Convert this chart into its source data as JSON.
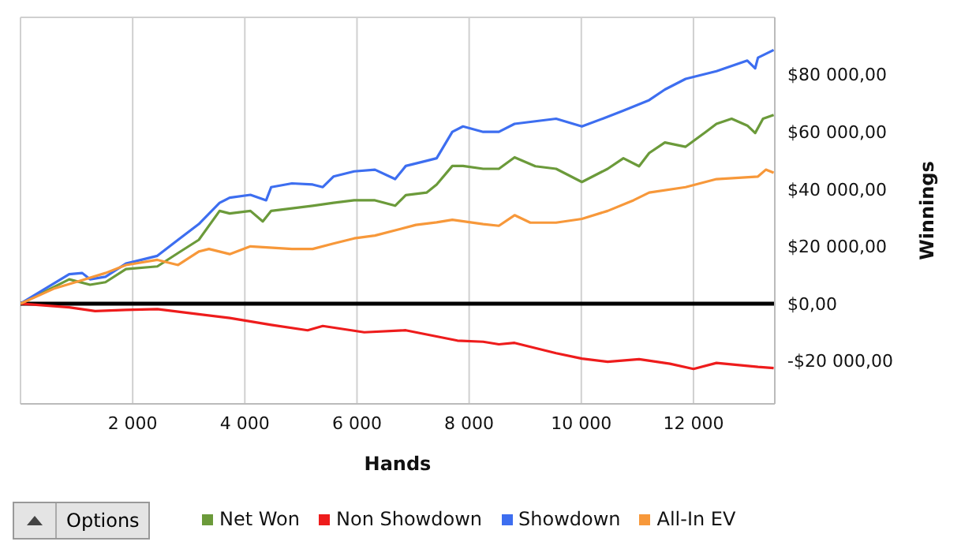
{
  "chart_data": {
    "type": "line",
    "xlabel": "Hands",
    "ylabel": "Winnings",
    "xlim": [
      0,
      13450
    ],
    "ylim": [
      -35000,
      100000
    ],
    "xticks": [
      {
        "value": 2000,
        "label": "2 000"
      },
      {
        "value": 4000,
        "label": "4 000"
      },
      {
        "value": 6000,
        "label": "6 000"
      },
      {
        "value": 8000,
        "label": "8 000"
      },
      {
        "value": 10000,
        "label": "10 000"
      },
      {
        "value": 12000,
        "label": "12 000"
      }
    ],
    "yticks": [
      {
        "value": -20000,
        "label": "-$20 000,00"
      },
      {
        "value": 0,
        "label": "$0,00"
      },
      {
        "value": 20000,
        "label": "$20 000,00"
      },
      {
        "value": 40000,
        "label": "$40 000,00"
      },
      {
        "value": 60000,
        "label": "$60 000,00"
      },
      {
        "value": 80000,
        "label": "$80 000,00"
      }
    ],
    "grid": true,
    "legend": "bottom",
    "marker": "none",
    "line_style": "solid",
    "ref_lines": [
      {
        "axis": "y",
        "value": 0,
        "color": "#000000"
      }
    ],
    "annotations": [
      "Options"
    ],
    "series": [
      {
        "name": "Net Won",
        "color": "#6b9a3a",
        "x": [
          0,
          868,
          1240,
          1515,
          1880,
          2440,
          2810,
          3180,
          3550,
          3730,
          4100,
          4320,
          4470,
          4840,
          5210,
          5580,
          5950,
          6320,
          6680,
          6870,
          7240,
          7420,
          7700,
          7890,
          8250,
          8530,
          8810,
          9180,
          9550,
          10010,
          10470,
          10750,
          11030,
          11210,
          11490,
          11860,
          12220,
          12410,
          12680,
          12960,
          13100,
          13240,
          13430
        ],
        "values": [
          0,
          8500,
          6600,
          7500,
          12100,
          13000,
          17700,
          22300,
          32400,
          31500,
          32400,
          28700,
          32400,
          33300,
          34200,
          35200,
          36100,
          36100,
          34200,
          37900,
          38800,
          41600,
          48100,
          48100,
          47100,
          47100,
          51100,
          48000,
          47100,
          42500,
          47100,
          50800,
          48000,
          52600,
          56300,
          54800,
          60000,
          62800,
          64600,
          62200,
          59600,
          64600,
          65900
        ]
      },
      {
        "name": "Non Showdown",
        "color": "#ee1c1c",
        "x": [
          0,
          868,
          1330,
          1880,
          2440,
          3180,
          3730,
          4470,
          5120,
          5390,
          6130,
          6870,
          7790,
          8250,
          8530,
          8810,
          9550,
          10010,
          10470,
          11030,
          11580,
          12000,
          12410,
          13150,
          13430
        ],
        "values": [
          0,
          -1300,
          -2600,
          -2200,
          -1900,
          -3700,
          -5000,
          -7400,
          -9300,
          -7800,
          -10000,
          -9300,
          -12900,
          -13300,
          -14200,
          -13700,
          -17300,
          -19200,
          -20300,
          -19400,
          -21000,
          -22800,
          -20700,
          -22100,
          -22500
        ]
      },
      {
        "name": "Showdown",
        "color": "#3d6ef0",
        "x": [
          0,
          868,
          1100,
          1240,
          1515,
          1880,
          2070,
          2440,
          2810,
          3180,
          3550,
          3730,
          4100,
          4380,
          4470,
          4840,
          5210,
          5390,
          5580,
          5950,
          6320,
          6680,
          6870,
          7240,
          7420,
          7700,
          7890,
          8250,
          8530,
          8810,
          9550,
          10010,
          10380,
          10750,
          11210,
          11490,
          11860,
          12410,
          12960,
          13100,
          13150,
          13430
        ],
        "values": [
          0,
          10300,
          10700,
          8500,
          9400,
          14000,
          14900,
          16700,
          22300,
          27800,
          35200,
          37000,
          38000,
          36100,
          40700,
          42000,
          41600,
          40700,
          44400,
          46200,
          46800,
          43500,
          48100,
          49900,
          50800,
          60000,
          61900,
          60000,
          60000,
          62800,
          64600,
          61900,
          64600,
          67400,
          71100,
          74800,
          78500,
          81200,
          84900,
          82200,
          85900,
          88600
        ]
      },
      {
        "name": "All-In EV",
        "color": "#f7983a",
        "x": [
          0,
          590,
          1050,
          1515,
          1880,
          2440,
          2810,
          3180,
          3360,
          3730,
          4100,
          4840,
          5210,
          5580,
          5950,
          6320,
          6680,
          7050,
          7420,
          7700,
          8250,
          8530,
          8810,
          9090,
          9550,
          10010,
          10470,
          10930,
          11210,
          11860,
          12410,
          13150,
          13290,
          13430
        ],
        "values": [
          0,
          5200,
          7900,
          10700,
          13500,
          15300,
          13500,
          18200,
          19100,
          17300,
          20000,
          19100,
          19100,
          21000,
          22800,
          23800,
          25600,
          27500,
          28400,
          29300,
          27800,
          27200,
          30900,
          28300,
          28300,
          29600,
          32400,
          36100,
          38800,
          40700,
          43500,
          44400,
          46800,
          45700
        ]
      }
    ]
  }
}
